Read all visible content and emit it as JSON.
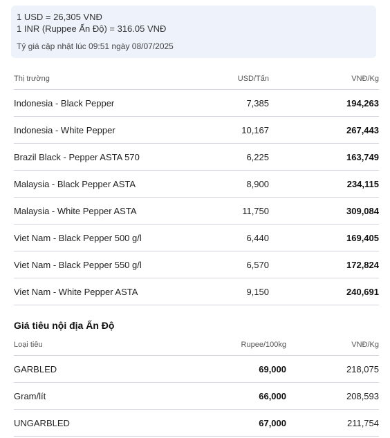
{
  "rates": {
    "usd": "1 USD = 26,305 VNĐ",
    "inr": "1 INR (Ruppee Ấn Độ) = 316.05 VNĐ",
    "updated": "Tỷ giá cập nhật lúc 09:51 ngày 08/07/2025"
  },
  "world_table": {
    "headers": [
      "Thị trường",
      "USD/Tấn",
      "VNĐ/Kg"
    ],
    "rows": [
      {
        "market": "Indonesia - Black Pepper",
        "usd": "7,385",
        "vnd": "194,263"
      },
      {
        "market": "Indonesia - White Pepper",
        "usd": "10,167",
        "vnd": "267,443"
      },
      {
        "market": "Brazil Black - Pepper ASTA 570",
        "usd": "6,225",
        "vnd": "163,749"
      },
      {
        "market": "Malaysia - Black Pepper ASTA",
        "usd": "8,900",
        "vnd": "234,115"
      },
      {
        "market": "Malaysia - White Pepper ASTA",
        "usd": "11,750",
        "vnd": "309,084"
      },
      {
        "market": "Viet Nam - Black Pepper 500 g/l",
        "usd": "6,440",
        "vnd": "169,405"
      },
      {
        "market": "Viet Nam - Black Pepper 550 g/l",
        "usd": "6,570",
        "vnd": "172,824"
      },
      {
        "market": "Viet Nam - White Pepper ASTA",
        "usd": "9,150",
        "vnd": "240,691"
      }
    ]
  },
  "india_section": {
    "title": "Giá tiêu nội địa Ấn Độ",
    "headers": [
      "Loại tiêu",
      "Rupee/100kg",
      "VNĐ/Kg"
    ],
    "rows": [
      {
        "type": "GARBLED",
        "rupee": "69,000",
        "vnd": "218,075"
      },
      {
        "type": "Gram/lít",
        "rupee": "66,000",
        "vnd": "208,593"
      },
      {
        "type": "UNGARBLED",
        "rupee": "67,000",
        "vnd": "211,754"
      }
    ]
  }
}
